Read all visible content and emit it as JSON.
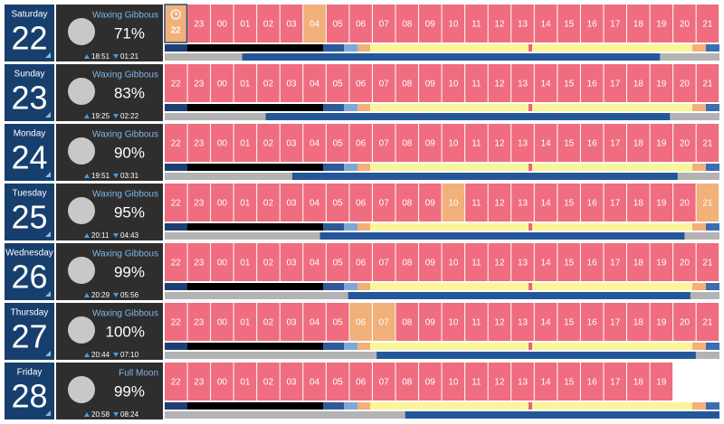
{
  "days": [
    {
      "weekday": "Saturday",
      "date": "22",
      "phase": "Waxing Gibbous",
      "illumination": "71%",
      "moonrise": "18:51",
      "moonset": "01:21",
      "hours": [
        "22",
        "23",
        "00",
        "01",
        "02",
        "03",
        "04",
        "05",
        "06",
        "07",
        "08",
        "09",
        "10",
        "11",
        "12",
        "13",
        "14",
        "15",
        "16",
        "17",
        "18",
        "19",
        "20",
        "21"
      ],
      "highlighted": [
        0,
        6
      ],
      "current": 0
    },
    {
      "weekday": "Sunday",
      "date": "23",
      "phase": "Waxing Gibbous",
      "illumination": "83%",
      "moonrise": "19:25",
      "moonset": "02:22",
      "hours": [
        "22",
        "23",
        "00",
        "01",
        "02",
        "03",
        "04",
        "05",
        "06",
        "07",
        "08",
        "09",
        "10",
        "11",
        "12",
        "13",
        "14",
        "15",
        "16",
        "17",
        "18",
        "19",
        "20",
        "21"
      ],
      "highlighted": []
    },
    {
      "weekday": "Monday",
      "date": "24",
      "phase": "Waxing Gibbous",
      "illumination": "90%",
      "moonrise": "19:51",
      "moonset": "03:31",
      "hours": [
        "22",
        "23",
        "00",
        "01",
        "02",
        "03",
        "04",
        "05",
        "06",
        "07",
        "08",
        "09",
        "10",
        "11",
        "12",
        "13",
        "14",
        "15",
        "16",
        "17",
        "18",
        "19",
        "20",
        "21"
      ],
      "highlighted": []
    },
    {
      "weekday": "Tuesday",
      "date": "25",
      "phase": "Waxing Gibbous",
      "illumination": "95%",
      "moonrise": "20:11",
      "moonset": "04:43",
      "hours": [
        "22",
        "23",
        "00",
        "01",
        "02",
        "03",
        "04",
        "05",
        "06",
        "07",
        "08",
        "09",
        "10",
        "11",
        "12",
        "13",
        "14",
        "15",
        "16",
        "17",
        "18",
        "19",
        "20",
        "21"
      ],
      "highlighted": [
        12,
        23
      ]
    },
    {
      "weekday": "Wednesday",
      "date": "26",
      "phase": "Waxing Gibbous",
      "illumination": "99%",
      "moonrise": "20:29",
      "moonset": "05:56",
      "hours": [
        "22",
        "23",
        "00",
        "01",
        "02",
        "03",
        "04",
        "05",
        "06",
        "07",
        "08",
        "09",
        "10",
        "11",
        "12",
        "13",
        "14",
        "15",
        "16",
        "17",
        "18",
        "19",
        "20",
        "21"
      ],
      "highlighted": []
    },
    {
      "weekday": "Thursday",
      "date": "27",
      "phase": "Waxing Gibbous",
      "illumination": "100%",
      "moonrise": "20:44",
      "moonset": "07:10",
      "hours": [
        "22",
        "23",
        "00",
        "01",
        "02",
        "03",
        "04",
        "05",
        "06",
        "07",
        "08",
        "09",
        "10",
        "11",
        "12",
        "13",
        "14",
        "15",
        "16",
        "17",
        "18",
        "19",
        "20",
        "21"
      ],
      "highlighted": [
        8,
        9
      ]
    },
    {
      "weekday": "Friday",
      "date": "28",
      "phase": "Full Moon",
      "illumination": "99%",
      "moonrise": "20:58",
      "moonset": "08:24",
      "hours": [
        "22",
        "23",
        "00",
        "01",
        "02",
        "03",
        "04",
        "05",
        "06",
        "07",
        "08",
        "09",
        "10",
        "11",
        "12",
        "13",
        "14",
        "15",
        "16",
        "17",
        "18",
        "19"
      ],
      "highlighted": []
    }
  ]
}
